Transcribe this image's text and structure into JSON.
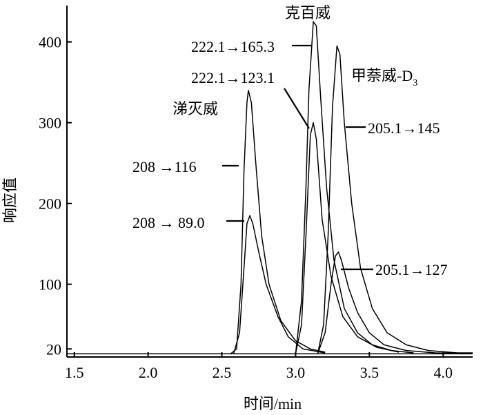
{
  "chart_data": {
    "type": "line",
    "xlabel": "时间/min",
    "ylabel": "响应值",
    "xlim": [
      1.45,
      4.2
    ],
    "ylim": [
      10,
      445
    ],
    "x_ticks": [
      "1.5",
      "2.0",
      "2.5",
      "3.0",
      "3.5",
      "4.0"
    ],
    "y_ticks": [
      "20",
      "100",
      "200",
      "300",
      "400"
    ],
    "baseline": 14,
    "series": [
      {
        "values": [
          [
            2.56,
            14
          ],
          [
            2.6,
            20
          ],
          [
            2.63,
            100
          ],
          [
            2.65,
            240
          ],
          [
            2.67,
            325
          ],
          [
            2.68,
            340
          ],
          [
            2.7,
            325
          ],
          [
            2.73,
            250
          ],
          [
            2.77,
            160
          ],
          [
            2.82,
            100
          ],
          [
            2.9,
            55
          ],
          [
            3.0,
            30
          ],
          [
            3.1,
            20
          ],
          [
            3.2,
            16
          ]
        ]
      },
      {
        "values": [
          [
            2.58,
            14
          ],
          [
            2.62,
            40
          ],
          [
            2.65,
            120
          ],
          [
            2.67,
            175
          ],
          [
            2.69,
            185
          ],
          [
            2.71,
            175
          ],
          [
            2.75,
            140
          ],
          [
            2.8,
            100
          ],
          [
            2.88,
            60
          ],
          [
            2.95,
            35
          ],
          [
            3.05,
            20
          ],
          [
            3.2,
            15
          ]
        ]
      },
      {
        "values": [
          [
            3.0,
            14
          ],
          [
            3.04,
            80
          ],
          [
            3.07,
            220
          ],
          [
            3.09,
            340
          ],
          [
            3.12,
            425
          ],
          [
            3.14,
            420
          ],
          [
            3.17,
            330
          ],
          [
            3.21,
            220
          ],
          [
            3.26,
            130
          ],
          [
            3.33,
            70
          ],
          [
            3.42,
            40
          ],
          [
            3.52,
            25
          ],
          [
            3.65,
            18
          ],
          [
            3.8,
            15
          ]
        ]
      },
      {
        "values": [
          [
            3.0,
            14
          ],
          [
            3.04,
            50
          ],
          [
            3.07,
            160
          ],
          [
            3.1,
            285
          ],
          [
            3.12,
            300
          ],
          [
            3.14,
            280
          ],
          [
            3.18,
            180
          ],
          [
            3.24,
            110
          ],
          [
            3.32,
            60
          ],
          [
            3.42,
            35
          ],
          [
            3.55,
            22
          ],
          [
            3.7,
            16
          ]
        ]
      },
      {
        "values": [
          [
            3.15,
            14
          ],
          [
            3.19,
            50
          ],
          [
            3.22,
            160
          ],
          [
            3.25,
            320
          ],
          [
            3.28,
            395
          ],
          [
            3.3,
            385
          ],
          [
            3.33,
            300
          ],
          [
            3.38,
            200
          ],
          [
            3.44,
            120
          ],
          [
            3.52,
            70
          ],
          [
            3.62,
            40
          ],
          [
            3.75,
            25
          ],
          [
            3.9,
            18
          ],
          [
            4.1,
            15
          ],
          [
            4.2,
            15
          ]
        ]
      },
      {
        "values": [
          [
            3.15,
            14
          ],
          [
            3.2,
            40
          ],
          [
            3.24,
            100
          ],
          [
            3.27,
            135
          ],
          [
            3.29,
            140
          ],
          [
            3.31,
            130
          ],
          [
            3.36,
            95
          ],
          [
            3.42,
            65
          ],
          [
            3.5,
            40
          ],
          [
            3.6,
            25
          ],
          [
            3.75,
            18
          ],
          [
            3.95,
            15
          ],
          [
            4.2,
            15
          ]
        ]
      }
    ],
    "annotations": [
      {
        "text": "涕灭威",
        "kind": "compound"
      },
      {
        "text": "208 →116",
        "kind": "transition"
      },
      {
        "text": "208 → 89.0",
        "kind": "transition"
      },
      {
        "text": "克百威",
        "kind": "compound"
      },
      {
        "text": "222.1→165.3",
        "kind": "transition"
      },
      {
        "text": "222.1→123.1",
        "kind": "transition"
      },
      {
        "text": "甲萘威-D",
        "sub": "3",
        "kind": "compound"
      },
      {
        "text": "205.1→145",
        "kind": "transition"
      },
      {
        "text": "205.1→127",
        "kind": "transition"
      }
    ]
  }
}
